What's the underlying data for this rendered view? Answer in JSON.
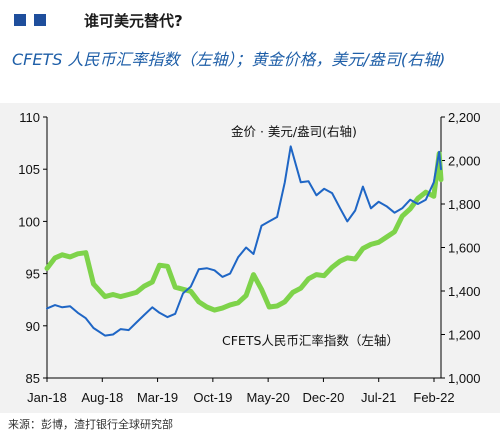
{
  "header": {
    "supertitle": "谁可美元替代?",
    "title": "CFETS 人民币汇率指数（左轴）；黄金价格，美元/盎司(右轴)",
    "accent_color": "#1f4e9c"
  },
  "source": "来源：彭博，渣打银行全球研究部",
  "chart_data": {
    "type": "line",
    "x_tick_labels": [
      "Jan-18",
      "Aug-18",
      "Mar-19",
      "Oct-19",
      "May-20",
      "Dec-20",
      "Jul-21",
      "Feb-22"
    ],
    "x_range": [
      "2018-01-01",
      "2022-03-15"
    ],
    "y_left": {
      "ticks": [
        "85",
        "90",
        "95",
        "100",
        "105",
        "110"
      ],
      "range": [
        85,
        110
      ]
    },
    "y_right": {
      "ticks": [
        "1,000",
        "1,200",
        "1,400",
        "1,600",
        "1,800",
        "2,000",
        "2,200"
      ],
      "range": [
        1000,
        2200
      ]
    },
    "grid": false,
    "series": [
      {
        "name": "金价 · 美元/盎司(右轴)",
        "axis": "right",
        "color": "#1f66c5",
        "x": [
          "2018-01-01",
          "2018-02-01",
          "2018-03-01",
          "2018-04-01",
          "2018-05-01",
          "2018-06-01",
          "2018-07-01",
          "2018-08-15",
          "2018-09-15",
          "2018-10-15",
          "2018-11-15",
          "2018-12-15",
          "2019-01-15",
          "2019-02-15",
          "2019-03-15",
          "2019-04-15",
          "2019-05-15",
          "2019-06-15",
          "2019-07-15",
          "2019-08-15",
          "2019-09-15",
          "2019-10-15",
          "2019-11-15",
          "2019-12-15",
          "2020-01-15",
          "2020-02-15",
          "2020-03-15",
          "2020-04-15",
          "2020-05-15",
          "2020-06-15",
          "2020-07-15",
          "2020-08-07",
          "2020-09-15",
          "2020-10-15",
          "2020-11-15",
          "2020-12-15",
          "2021-01-15",
          "2021-02-15",
          "2021-03-15",
          "2021-04-15",
          "2021-05-15",
          "2021-06-15",
          "2021-07-15",
          "2021-08-15",
          "2021-09-15",
          "2021-10-15",
          "2021-11-15",
          "2021-12-15",
          "2022-01-15",
          "2022-02-15",
          "2022-03-08",
          "2022-03-15"
        ],
        "values": [
          1320,
          1335,
          1325,
          1330,
          1300,
          1275,
          1230,
          1195,
          1200,
          1225,
          1220,
          1255,
          1290,
          1325,
          1300,
          1280,
          1295,
          1390,
          1420,
          1500,
          1505,
          1495,
          1465,
          1480,
          1555,
          1600,
          1570,
          1700,
          1720,
          1740,
          1900,
          2065,
          1900,
          1905,
          1840,
          1870,
          1850,
          1780,
          1720,
          1770,
          1880,
          1780,
          1810,
          1790,
          1760,
          1780,
          1820,
          1800,
          1820,
          1900,
          2040,
          1960
        ]
      },
      {
        "name": "CFETS人民币汇率指数（左轴）",
        "axis": "left",
        "color": "#7ed34a",
        "x": [
          "2018-01-01",
          "2018-02-01",
          "2018-03-01",
          "2018-04-01",
          "2018-05-01",
          "2018-06-01",
          "2018-07-01",
          "2018-08-15",
          "2018-09-15",
          "2018-10-15",
          "2018-11-15",
          "2018-12-15",
          "2019-01-15",
          "2019-02-15",
          "2019-03-15",
          "2019-04-15",
          "2019-05-15",
          "2019-06-15",
          "2019-07-15",
          "2019-08-15",
          "2019-09-15",
          "2019-10-15",
          "2019-11-15",
          "2019-12-15",
          "2020-01-15",
          "2020-02-15",
          "2020-03-15",
          "2020-04-15",
          "2020-05-15",
          "2020-06-15",
          "2020-07-15",
          "2020-08-15",
          "2020-09-15",
          "2020-10-15",
          "2020-11-15",
          "2020-12-15",
          "2021-01-15",
          "2021-02-15",
          "2021-03-15",
          "2021-04-15",
          "2021-05-15",
          "2021-06-15",
          "2021-07-15",
          "2021-08-15",
          "2021-09-15",
          "2021-10-15",
          "2021-11-15",
          "2021-12-15",
          "2022-01-15",
          "2022-02-15",
          "2022-03-08",
          "2022-03-15"
        ],
        "values": [
          95.5,
          96.5,
          96.8,
          96.6,
          96.9,
          97.0,
          94.0,
          92.8,
          93.0,
          92.8,
          93.0,
          93.2,
          93.8,
          94.2,
          95.8,
          95.7,
          93.7,
          93.5,
          93.3,
          92.3,
          91.8,
          91.5,
          91.7,
          92.0,
          92.2,
          92.9,
          94.9,
          93.5,
          91.8,
          91.9,
          92.3,
          93.2,
          93.6,
          94.5,
          94.9,
          94.8,
          95.6,
          96.2,
          96.5,
          96.4,
          97.4,
          97.8,
          98.0,
          98.5,
          99.0,
          100.5,
          101.2,
          102.2,
          102.8,
          102.4,
          106.5,
          104.0
        ]
      }
    ]
  }
}
